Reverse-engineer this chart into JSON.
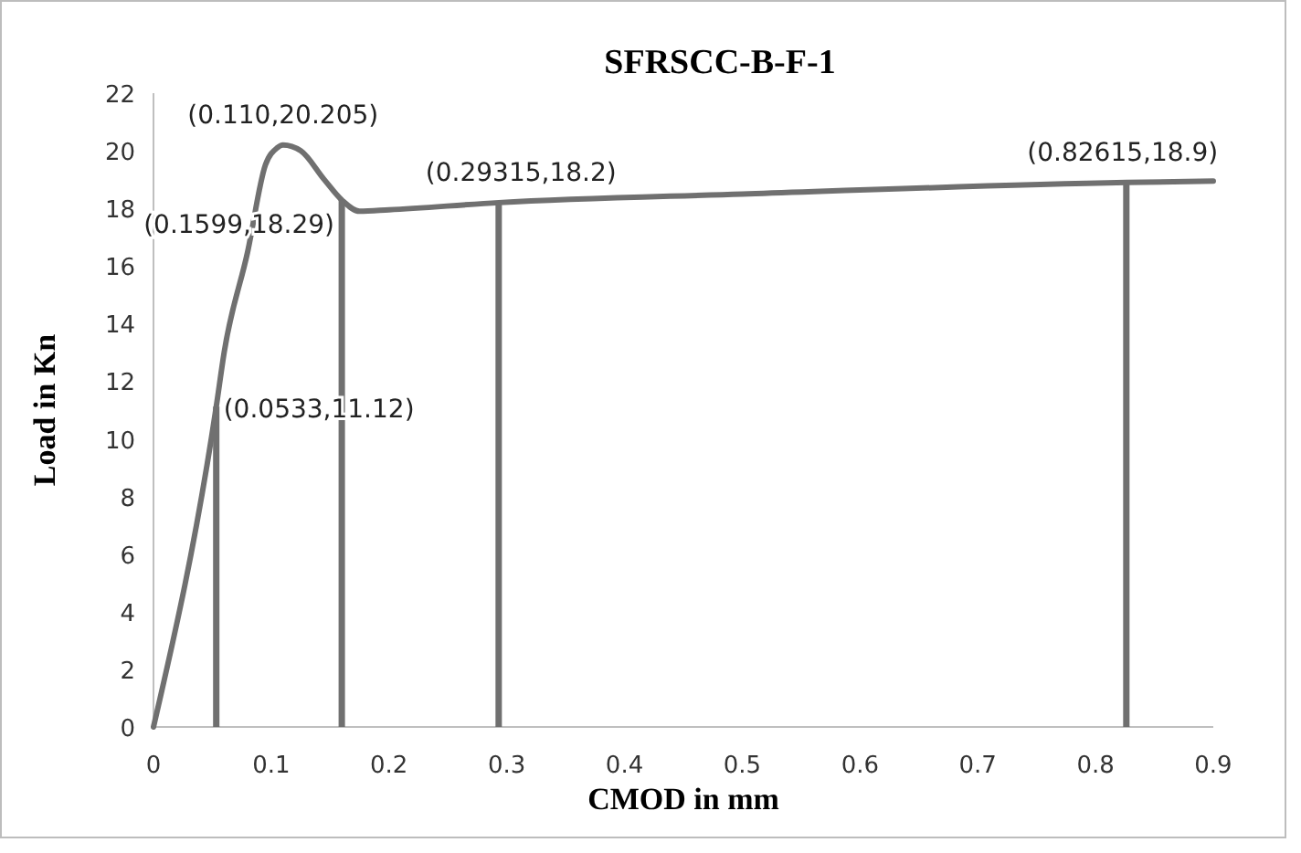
{
  "chart_data": {
    "type": "line",
    "title": "SFRSCC-B-F-1",
    "xlabel": "CMOD in mm",
    "ylabel": "Load in Kn",
    "xlim": [
      0,
      0.9
    ],
    "xticks": [
      0,
      0.1,
      0.2,
      0.3,
      0.4,
      0.5,
      0.6,
      0.7,
      0.8,
      0.9
    ],
    "ylim": [
      0,
      22
    ],
    "yticks": [
      0,
      2,
      4,
      6,
      8,
      10,
      12,
      14,
      16,
      18,
      20,
      22
    ],
    "grid": false,
    "marker": "none",
    "line_style": "solid",
    "series": [
      {
        "color": "#707070",
        "x": [
          0,
          0.0533,
          0.06,
          0.08,
          0.095,
          0.105,
          0.11,
          0.125,
          0.145,
          0.1599,
          0.175,
          0.2,
          0.29315,
          0.5,
          0.82615,
          0.9
        ],
        "values": [
          0,
          11.12,
          13,
          16.5,
          19.5,
          20.1,
          20.2,
          20,
          19,
          18.29,
          17.9,
          17.95,
          18.2,
          18.5,
          18.9,
          18.95
        ]
      },
      {
        "type": "bar",
        "color": "#707070",
        "x": [
          0.0533,
          0.1599,
          0.29315,
          0.82615
        ],
        "values": [
          11.12,
          18.29,
          18.2,
          18.9
        ]
      }
    ],
    "annotations": [
      {
        "text": "(0.110,20.205)",
        "x": 0.11,
        "y": 20.205
      },
      {
        "text": "(0.1599,18.29)",
        "x": 0.1599,
        "y": 18.29
      },
      {
        "text": "(0.0533,11.12)",
        "x": 0.0533,
        "y": 11.12
      },
      {
        "text": "(0.29315,18.2)",
        "x": 0.29315,
        "y": 18.2
      },
      {
        "text": "(0.82615,18.9)",
        "x": 0.82615,
        "y": 18.9
      }
    ]
  }
}
